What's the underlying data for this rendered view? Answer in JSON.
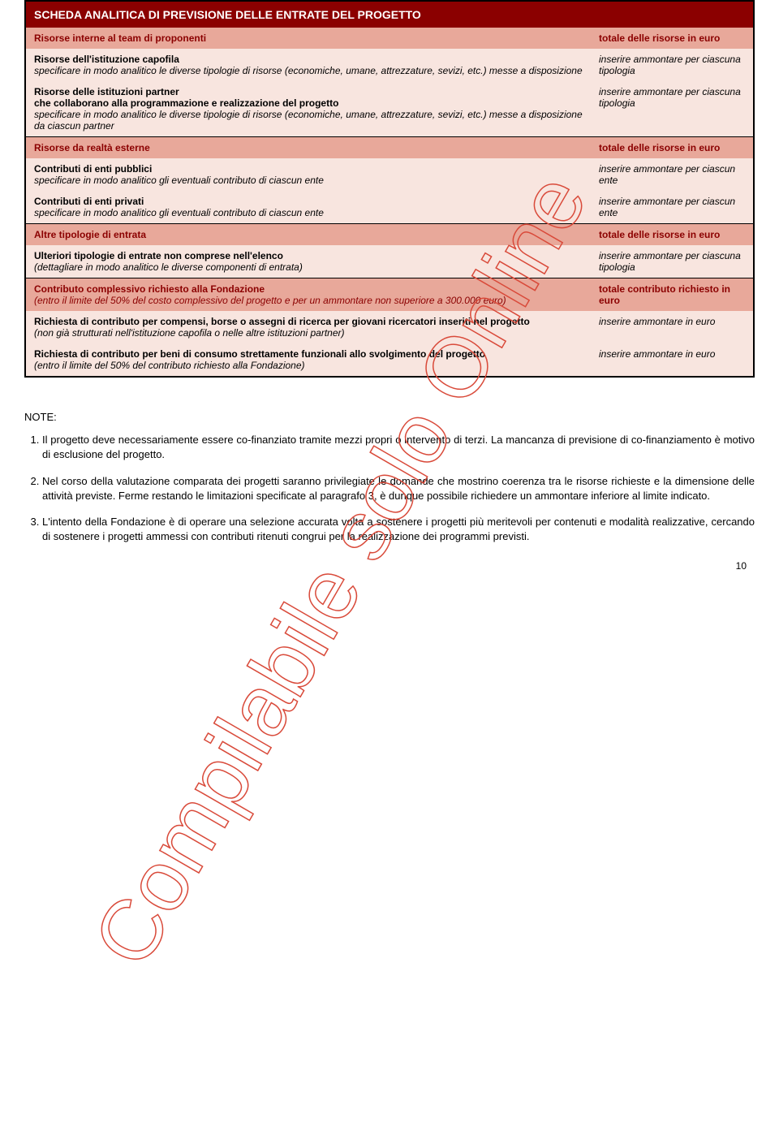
{
  "colors": {
    "header_bg": "#8b0000",
    "header_text": "#ffffff",
    "salmon_bg": "#e8a89a",
    "light_bg": "#f8e5df",
    "maroon_text": "#8b0000",
    "black": "#000000",
    "watermark_stroke": "#d94a3a"
  },
  "table": {
    "title": "SCHEDA ANALITICA DI PREVISIONE DELLE ENTRATE DEL PROGETTO",
    "rows": [
      {
        "left_title": "Risorse interne al team di proponenti",
        "right_title": "totale delle risorse in euro",
        "bg": "salmon",
        "is_header": true
      },
      {
        "left_title": "Risorse dell'istituzione capofila",
        "left_detail": "specificare in modo analitico le diverse tipologie di risorse (economiche, umane, attrezzature, sevizi, etc.) messe a disposizione",
        "right_title": "inserire ammontare per ciascuna tipologia",
        "bg": "light"
      },
      {
        "left_title": "Risorse delle istituzioni partner",
        "left_mid": "che collaborano alla programmazione e realizzazione del progetto",
        "left_detail": "specificare in modo analitico le diverse tipologie di risorse (economiche, umane, attrezzature, sevizi, etc.) messe a disposizione da ciascun partner",
        "right_title": "inserire ammontare per ciascuna tipologia",
        "bg": "light"
      },
      {
        "left_title": "Risorse da realtà esterne",
        "right_title": "totale delle risorse in euro",
        "bg": "salmon",
        "is_header": true
      },
      {
        "left_title": "Contributi di enti pubblici",
        "left_detail": "specificare in modo analitico gli eventuali contributo di ciascun ente",
        "right_title": "inserire ammontare per ciascun ente",
        "bg": "light"
      },
      {
        "left_title": "Contributi di enti privati",
        "left_detail": "specificare in modo analitico gli eventuali contributo di ciascun ente",
        "right_title": "inserire ammontare per ciascun ente",
        "bg": "light"
      },
      {
        "left_title": "Altre tipologie di entrata",
        "right_title": "totale delle risorse in euro",
        "bg": "salmon",
        "is_header": true
      },
      {
        "left_title": "Ulteriori tipologie di entrate non comprese nell'elenco",
        "left_detail": "(dettagliare in modo analitico le diverse componenti di entrata)",
        "right_title": "inserire ammontare per ciascuna tipologia",
        "bg": "light"
      },
      {
        "left_title": "Contributo complessivo richiesto alla Fondazione",
        "left_detail": "(entro il limite del 50% del costo complessivo del progetto e per un ammontare non superiore a 300.000 euro)",
        "right_title": "totale contributo richiesto in euro",
        "bg": "salmon",
        "is_header": true
      },
      {
        "left_title": "Richiesta di contributo per compensi, borse o assegni di ricerca per giovani ricercatori inseriti nel progetto",
        "left_detail": "(non già strutturati nell'istituzione capofila o nelle altre istituzioni partner)",
        "right_title": "inserire ammontare in euro",
        "bg": "light"
      },
      {
        "left_title": "Richiesta di contributo per beni di consumo strettamente funzionali allo svolgimento del progetto",
        "left_detail": "(entro il limite del 50% del contributo richiesto alla Fondazione)",
        "right_title": "inserire ammontare in euro",
        "bg": "light"
      }
    ]
  },
  "notes": {
    "title": "NOTE:",
    "items": [
      "Il progetto deve necessariamente essere co-finanziato tramite mezzi propri o intervento di terzi. La mancanza di previsione di co-finanziamento è motivo di esclusione del progetto.",
      "Nel corso della valutazione comparata dei progetti saranno privilegiate le domande che mostrino coerenza tra le risorse richieste e la dimensione delle attività previste. Ferme restando le limitazioni specificate al paragrafo 3, è dunque possibile richiedere un ammontare inferiore al limite indicato.",
      "L'intento della Fondazione è di operare una selezione accurata volta a sostenere i progetti più meritevoli per contenuti e modalità realizzative, cercando di sostenere i progetti ammessi con contributi ritenuti congrui per la realizzazione dei programmi previsti."
    ]
  },
  "watermark_text": "Compilabile solo Online",
  "page_number": "10"
}
